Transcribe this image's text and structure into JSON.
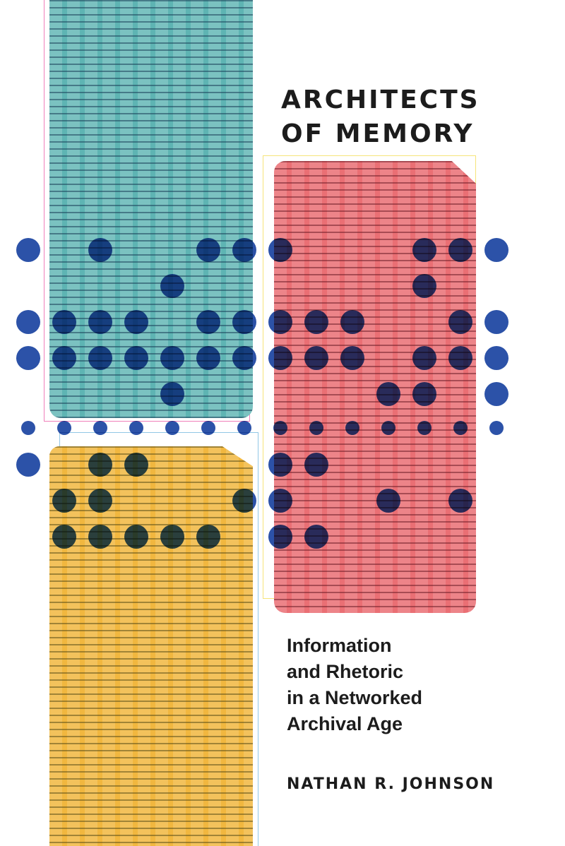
{
  "cover": {
    "title_lines": [
      "ARCHITECTS",
      "OF MEMORY"
    ],
    "subtitle_lines": [
      "Information",
      "and Rhetoric",
      "in a Networked",
      "Archival Age"
    ],
    "author": "NATHAN R. JOHNSON"
  },
  "colors": {
    "teal_card": "#5eb4b3",
    "red_card": "#ea6f74",
    "yellow_card": "#f1b73f",
    "dots": "#2c52a8",
    "text": "#1c1c1c"
  }
}
